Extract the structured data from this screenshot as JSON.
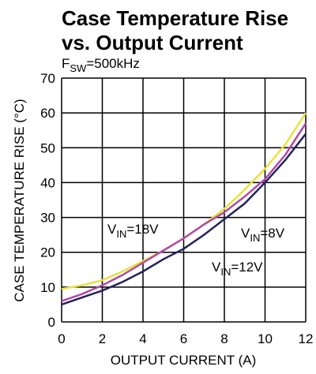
{
  "chart_data": {
    "type": "line",
    "title": [
      "Case Temperature Rise",
      "vs. Output Current"
    ],
    "subtitle": [
      "F",
      "SW",
      "=500kHz"
    ],
    "x_label": "OUTPUT CURRENT (A)",
    "y_label": "CASE TEMPERATURE RISE (°C)",
    "x": [
      0,
      1,
      2,
      3,
      4,
      5,
      6,
      7,
      8,
      9,
      10,
      11,
      12
    ],
    "series": [
      {
        "name": "VIN=18V",
        "color": "#e8e23c",
        "values": [
          9.5,
          10.5,
          12,
          14.5,
          17.5,
          20.5,
          24,
          28,
          32.5,
          38,
          44,
          51,
          60
        ]
      },
      {
        "name": "VIN=12V",
        "color": "#b04aa6",
        "values": [
          6,
          8,
          10.5,
          13.5,
          17,
          20.5,
          24,
          28,
          31.5,
          36,
          41,
          48,
          57
        ]
      },
      {
        "name": "VIN=8V",
        "color": "#23235e",
        "values": [
          5,
          7,
          9,
          11.5,
          14.5,
          18,
          21,
          25,
          29.5,
          34,
          40,
          46.5,
          54
        ]
      }
    ],
    "xlim": [
      0,
      12
    ],
    "xticks": [
      0,
      2,
      4,
      6,
      8,
      10,
      12
    ],
    "ylim": [
      0,
      70
    ],
    "yticks": [
      0,
      10,
      20,
      30,
      40,
      50,
      60,
      70
    ],
    "grid": true
  }
}
